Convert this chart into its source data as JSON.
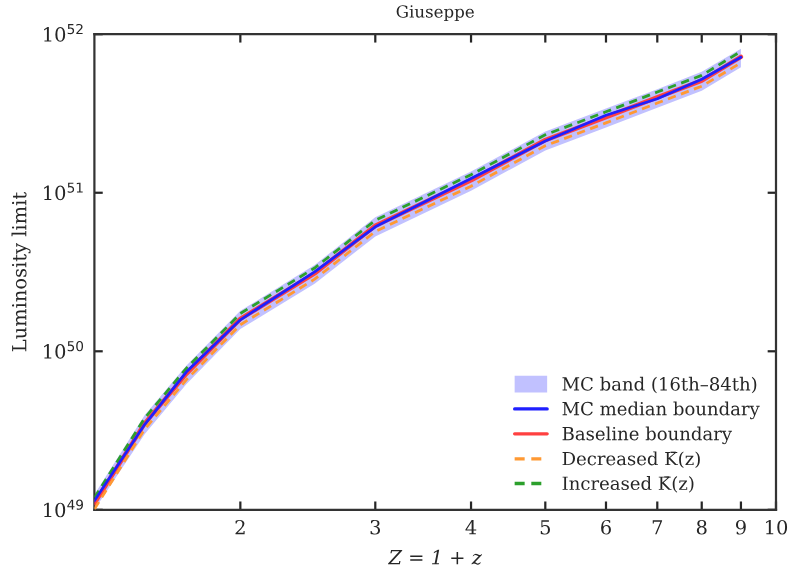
{
  "chart_data": {
    "type": "line",
    "title": "Giuseppe",
    "xlabel": "Z = 1 + z",
    "ylabel": "Luminosity limit",
    "annotations": [
      "MC band (16th–84th)"
    ],
    "x": [
      1.29,
      1.5,
      1.7,
      2,
      2.5,
      3,
      4,
      5,
      6,
      7,
      8,
      9
    ],
    "series": [
      {
        "name": "MC median boundary",
        "color": "#1f1fff",
        "line_style": "solid",
        "values": [
          1.14e+49,
          3.45e+49,
          7.4e+49,
          1.58e+50,
          3.17e+50,
          6.1e+50,
          1.23e+51,
          2.12e+51,
          3.08e+51,
          3.92e+51,
          5.2e+51,
          7.15e+51
        ],
        "lower": [
          1e+49,
          3e+49,
          6.2e+49,
          1.38e+50,
          2.67e+50,
          5.3e+50,
          1.03e+51,
          1.85e+51,
          2.58e+51,
          3.44e+51,
          4.4e+51,
          6.2e+51
        ],
        "upper": [
          1.25e+49,
          3.95e+49,
          8.1e+49,
          1.8e+50,
          3.5e+50,
          7e+50,
          1.36e+51,
          2.43e+51,
          3.4e+51,
          4.5e+51,
          5.8e+51,
          8.1e+51
        ]
      },
      {
        "name": "Baseline boundary",
        "color": "#ff4040",
        "line_style": "solid",
        "values": [
          1.1e+49,
          3.5e+49,
          7.2e+49,
          1.6e+50,
          3.1e+50,
          6.2e+50,
          1.2e+51,
          2.15e+51,
          3e+51,
          4e+51,
          5.1e+51,
          7.2e+51
        ]
      },
      {
        "name": "Decreased K̄(z)",
        "color": "#ff9933",
        "line_style": "dashed",
        "values": [
          1.01e+49,
          3.22e+49,
          6.6e+49,
          1.47e+50,
          2.85e+50,
          5.7e+50,
          1.1e+51,
          1.98e+51,
          2.76e+51,
          3.68e+51,
          4.7e+51,
          6.6e+51
        ]
      },
      {
        "name": "Increased K̄(z)",
        "color": "#2ca02c",
        "line_style": "dashed",
        "values": [
          1.19e+49,
          3.78e+49,
          7.8e+49,
          1.73e+50,
          3.35e+50,
          6.7e+50,
          1.3e+51,
          2.32e+51,
          3.24e+51,
          4.32e+51,
          5.5e+51,
          7.8e+51
        ]
      }
    ],
    "log": "xy",
    "xlim": [
      1.29,
      10
    ],
    "xticks": [
      2,
      3,
      4,
      5,
      6,
      7,
      8,
      9,
      10
    ],
    "ylim": [
      1e+49,
      1e+52
    ],
    "yticks": [
      {
        "value": 1e+49,
        "label": "10$^{49}$"
      },
      {
        "value": 1e+50,
        "label": "10$^{50}$"
      },
      {
        "value": 1e+51,
        "label": "10$^{51}$"
      },
      {
        "value": 1e+52,
        "label": "10$^{52}$"
      }
    ],
    "grid": false,
    "legend": "bottom right"
  }
}
